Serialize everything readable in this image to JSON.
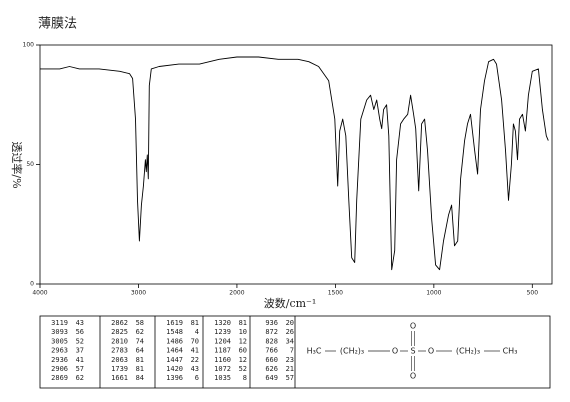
{
  "chart_data": {
    "type": "line",
    "title": "薄膜法",
    "xlabel": "波数/cm⁻¹",
    "ylabel": "透过率/%",
    "xlim": [
      4000,
      400
    ],
    "xticks": [
      4000,
      3000,
      2000,
      1500,
      1000,
      500
    ],
    "ylim": [
      0,
      100
    ],
    "yticks": [
      0,
      50,
      100
    ],
    "x": [
      4000,
      3800,
      3700,
      3600,
      3400,
      3190,
      3090,
      3060,
      3030,
      3010,
      2990,
      2970,
      2950,
      2930,
      2920,
      2910,
      2900,
      2890,
      2870,
      2790,
      2590,
      2380,
      2180,
      2000,
      1890,
      1790,
      1690,
      1635,
      1585,
      1534,
      1503,
      1488,
      1478,
      1463,
      1447,
      1432,
      1417,
      1402,
      1392,
      1371,
      1341,
      1321,
      1305,
      1290,
      1275,
      1265,
      1255,
      1240,
      1229,
      1214,
      1199,
      1189,
      1169,
      1153,
      1133,
      1118,
      1103,
      1092,
      1077,
      1062,
      1047,
      1032,
      1011,
      991,
      971,
      951,
      925,
      910,
      895,
      879,
      864,
      844,
      829,
      814,
      793,
      778,
      763,
      743,
      722,
      697,
      682,
      656,
      636,
      621,
      606,
      596,
      586,
      575,
      565,
      550,
      535,
      520,
      500,
      469,
      449,
      429,
      419
    ],
    "series": [
      {
        "color": "#000000",
        "values": [
          90,
          90,
          91,
          90,
          90,
          89,
          88,
          86,
          69,
          35,
          18,
          33,
          41,
          52,
          47,
          54,
          44,
          83,
          90,
          91,
          92,
          92,
          94,
          95,
          95,
          94,
          94,
          93,
          91,
          85,
          69,
          41,
          64,
          69,
          62,
          35,
          11,
          9,
          35,
          69,
          77,
          79,
          73,
          77,
          69,
          65,
          73,
          75,
          62,
          6,
          14,
          52,
          67,
          69,
          71,
          79,
          71,
          65,
          39,
          67,
          69,
          56,
          27,
          8,
          6,
          18,
          29,
          33,
          16,
          18,
          44,
          60,
          67,
          71,
          56,
          46,
          73,
          85,
          93,
          94,
          92,
          77,
          56,
          35,
          50,
          67,
          64,
          52,
          69,
          71,
          64,
          79,
          89,
          90,
          73,
          62,
          60
        ]
      }
    ]
  },
  "peak_table": [
    [
      [
        3119,
        43
      ],
      [
        3093,
        56
      ],
      [
        3005,
        52
      ],
      [
        2963,
        37
      ],
      [
        2936,
        41
      ],
      [
        2906,
        57
      ],
      [
        2869,
        62
      ]
    ],
    [
      [
        2862,
        58
      ],
      [
        2825,
        62
      ],
      [
        2810,
        74
      ],
      [
        2783,
        64
      ],
      [
        2063,
        81
      ],
      [
        1739,
        81
      ],
      [
        1661,
        84
      ]
    ],
    [
      [
        1619,
        81
      ],
      [
        1548,
        4
      ],
      [
        1486,
        70
      ],
      [
        1464,
        41
      ],
      [
        1447,
        22
      ],
      [
        1420,
        43
      ],
      [
        1396,
        6
      ]
    ],
    [
      [
        1320,
        81
      ],
      [
        1239,
        10
      ],
      [
        1204,
        12
      ],
      [
        1187,
        60
      ],
      [
        1160,
        12
      ],
      [
        1072,
        52
      ],
      [
        1035,
        8
      ]
    ],
    [
      [
        936,
        20
      ],
      [
        872,
        26
      ],
      [
        828,
        34
      ],
      [
        766,
        7
      ],
      [
        660,
        23
      ],
      [
        626,
        21
      ],
      [
        649,
        57
      ]
    ]
  ],
  "structure": {
    "chain": [
      "H₃C",
      "(CH₂)₃",
      "O",
      "S",
      "O",
      "(CH₂)₃",
      "CH₃"
    ],
    "top": "O",
    "bottom": "O"
  }
}
